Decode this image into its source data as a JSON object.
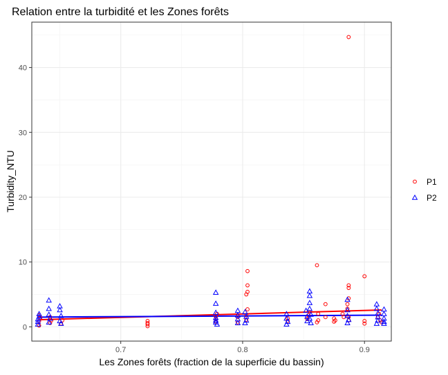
{
  "chart_data": {
    "type": "scatter",
    "title": "Relation entre la turbidité et les Zones forêts",
    "xlabel": "Les Zones forêts (fraction de la superficie du bassin)",
    "ylabel": "Turbidity_NTU",
    "xlim": [
      0.627,
      0.922
    ],
    "ylim": [
      -2.2,
      47.0
    ],
    "x_ticks": [
      0.7,
      0.8,
      0.9
    ],
    "x_tick_labels": [
      "0.7",
      "0.8",
      "0.9"
    ],
    "y_ticks": [
      0,
      10,
      20,
      30,
      40
    ],
    "y_tick_labels": [
      "0",
      "10",
      "20",
      "30",
      "40"
    ],
    "grid": true,
    "legend_position": "right",
    "series": [
      {
        "name": "P1",
        "color": "#ff0000",
        "marker": "circle",
        "points": [
          [
            0.633,
            0.2
          ],
          [
            0.633,
            0.9
          ],
          [
            0.634,
            1.4
          ],
          [
            0.633,
            1.8
          ],
          [
            0.642,
            0.6
          ],
          [
            0.643,
            1.0
          ],
          [
            0.642,
            1.5
          ],
          [
            0.651,
            0.5
          ],
          [
            0.652,
            1.0
          ],
          [
            0.722,
            0.1
          ],
          [
            0.722,
            0.4
          ],
          [
            0.722,
            0.6
          ],
          [
            0.722,
            0.9
          ],
          [
            0.778,
            0.8
          ],
          [
            0.778,
            1.2
          ],
          [
            0.778,
            1.6
          ],
          [
            0.779,
            2.0
          ],
          [
            0.796,
            0.7
          ],
          [
            0.796,
            1.5
          ],
          [
            0.804,
            8.6
          ],
          [
            0.804,
            6.4
          ],
          [
            0.804,
            5.4
          ],
          [
            0.803,
            5.0
          ],
          [
            0.804,
            2.7
          ],
          [
            0.803,
            1.8
          ],
          [
            0.803,
            1.1
          ],
          [
            0.837,
            0.9
          ],
          [
            0.837,
            1.3
          ],
          [
            0.853,
            1.2
          ],
          [
            0.854,
            1.8
          ],
          [
            0.855,
            2.3
          ],
          [
            0.861,
            9.5
          ],
          [
            0.861,
            0.7
          ],
          [
            0.862,
            1.0
          ],
          [
            0.862,
            2.0
          ],
          [
            0.868,
            3.5
          ],
          [
            0.868,
            1.5
          ],
          [
            0.875,
            0.8
          ],
          [
            0.875,
            1.3
          ],
          [
            0.876,
            1.0
          ],
          [
            0.882,
            2.0
          ],
          [
            0.883,
            1.5
          ],
          [
            0.887,
            44.7
          ],
          [
            0.887,
            6.4
          ],
          [
            0.887,
            6.0
          ],
          [
            0.887,
            4.4
          ],
          [
            0.886,
            3.5
          ],
          [
            0.886,
            2.8
          ],
          [
            0.887,
            1.5
          ],
          [
            0.887,
            1.0
          ],
          [
            0.9,
            7.8
          ],
          [
            0.9,
            0.5
          ],
          [
            0.9,
            0.9
          ],
          [
            0.911,
            1.5
          ],
          [
            0.912,
            2.0
          ],
          [
            0.913,
            1.0
          ],
          [
            0.914,
            0.7
          ]
        ],
        "trend": [
          [
            0.633,
            1.1
          ],
          [
            0.914,
            2.6
          ]
        ]
      },
      {
        "name": "P2",
        "color": "#0000ff",
        "marker": "triangle",
        "points": [
          [
            0.632,
            0.4
          ],
          [
            0.632,
            0.8
          ],
          [
            0.632,
            1.2
          ],
          [
            0.633,
            1.6
          ],
          [
            0.633,
            2.0
          ],
          [
            0.641,
            4.1
          ],
          [
            0.641,
            2.8
          ],
          [
            0.641,
            1.9
          ],
          [
            0.642,
            1.3
          ],
          [
            0.641,
            0.7
          ],
          [
            0.65,
            3.2
          ],
          [
            0.65,
            2.6
          ],
          [
            0.651,
            1.7
          ],
          [
            0.65,
            0.9
          ],
          [
            0.651,
            0.5
          ],
          [
            0.778,
            5.3
          ],
          [
            0.778,
            3.6
          ],
          [
            0.778,
            2.2
          ],
          [
            0.778,
            1.4
          ],
          [
            0.778,
            1.0
          ],
          [
            0.778,
            0.7
          ],
          [
            0.779,
            0.4
          ],
          [
            0.796,
            2.5
          ],
          [
            0.796,
            1.8
          ],
          [
            0.796,
            1.2
          ],
          [
            0.796,
            0.6
          ],
          [
            0.802,
            2.3
          ],
          [
            0.803,
            1.6
          ],
          [
            0.803,
            1.0
          ],
          [
            0.802,
            0.6
          ],
          [
            0.836,
            2.0
          ],
          [
            0.836,
            1.3
          ],
          [
            0.837,
            0.8
          ],
          [
            0.836,
            0.4
          ],
          [
            0.852,
            2.5
          ],
          [
            0.853,
            1.6
          ],
          [
            0.853,
            0.9
          ],
          [
            0.855,
            5.5
          ],
          [
            0.855,
            4.8
          ],
          [
            0.855,
            3.7
          ],
          [
            0.855,
            2.8
          ],
          [
            0.856,
            1.9
          ],
          [
            0.855,
            1.3
          ],
          [
            0.856,
            0.6
          ],
          [
            0.886,
            4.2
          ],
          [
            0.886,
            2.6
          ],
          [
            0.886,
            1.7
          ],
          [
            0.887,
            1.1
          ],
          [
            0.886,
            0.6
          ],
          [
            0.91,
            3.5
          ],
          [
            0.91,
            2.8
          ],
          [
            0.911,
            2.1
          ],
          [
            0.911,
            1.5
          ],
          [
            0.911,
            1.0
          ],
          [
            0.91,
            0.5
          ],
          [
            0.916,
            2.7
          ],
          [
            0.916,
            2.0
          ],
          [
            0.916,
            1.3
          ],
          [
            0.916,
            0.8
          ],
          [
            0.916,
            0.5
          ]
        ],
        "trend": [
          [
            0.633,
            1.5
          ],
          [
            0.914,
            1.8
          ]
        ]
      }
    ]
  }
}
